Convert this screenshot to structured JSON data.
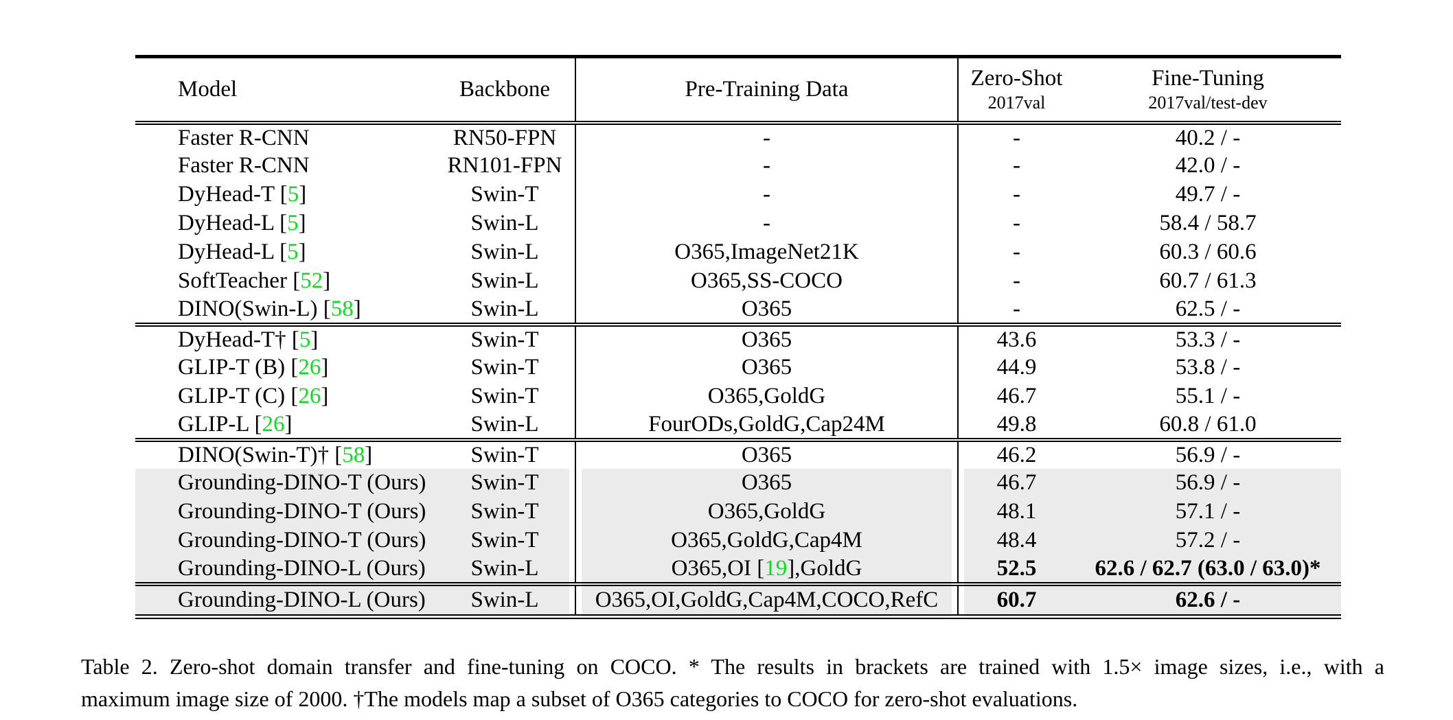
{
  "colors": {
    "citation_green": "#0ddd22",
    "row_gray": "#ebebeb",
    "text": "#000000",
    "background": "#ffffff"
  },
  "table": {
    "header": {
      "model": "Model",
      "backbone": "Backbone",
      "pretrain": "Pre-Training Data",
      "zero_shot_title": "Zero-Shot",
      "zero_shot_sub": "2017val",
      "fine_tuning_title": "Fine-Tuning",
      "fine_tuning_sub": "2017val/test-dev"
    },
    "sections": [
      {
        "rows": [
          {
            "model": "Faster R-CNN",
            "cite": null,
            "backbone": "RN50-FPN",
            "pretrain": "-",
            "pretrain_cite": null,
            "pretrain_suffix": "",
            "zs": "-",
            "ft": "40.2 / -",
            "bold": false,
            "gray": false
          },
          {
            "model": "Faster R-CNN",
            "cite": null,
            "backbone": "RN101-FPN",
            "pretrain": "-",
            "pretrain_cite": null,
            "pretrain_suffix": "",
            "zs": "-",
            "ft": "42.0 / -",
            "bold": false,
            "gray": false
          },
          {
            "model": "DyHead-T ",
            "cite": "5",
            "backbone": "Swin-T",
            "pretrain": "-",
            "pretrain_cite": null,
            "pretrain_suffix": "",
            "zs": "-",
            "ft": "49.7 / -",
            "bold": false,
            "gray": false
          },
          {
            "model": "DyHead-L ",
            "cite": "5",
            "backbone": "Swin-L",
            "pretrain": "-",
            "pretrain_cite": null,
            "pretrain_suffix": "",
            "zs": "-",
            "ft": "58.4 / 58.7",
            "bold": false,
            "gray": false
          },
          {
            "model": "DyHead-L ",
            "cite": "5",
            "backbone": "Swin-L",
            "pretrain": "O365,ImageNet21K",
            "pretrain_cite": null,
            "pretrain_suffix": "",
            "zs": "-",
            "ft": "60.3 / 60.6",
            "bold": false,
            "gray": false
          },
          {
            "model": "SoftTeacher ",
            "cite": "52",
            "backbone": "Swin-L",
            "pretrain": "O365,SS-COCO",
            "pretrain_cite": null,
            "pretrain_suffix": "",
            "zs": "-",
            "ft": "60.7 / 61.3",
            "bold": false,
            "gray": false
          },
          {
            "model": "DINO(Swin-L) ",
            "cite": "58",
            "backbone": "Swin-L",
            "pretrain": "O365",
            "pretrain_cite": null,
            "pretrain_suffix": "",
            "zs": "-",
            "ft": "62.5 / -",
            "bold": false,
            "gray": false
          }
        ]
      },
      {
        "rows": [
          {
            "model": "DyHead-T† ",
            "cite": "5",
            "backbone": "Swin-T",
            "pretrain": "O365",
            "pretrain_cite": null,
            "pretrain_suffix": "",
            "zs": "43.6",
            "ft": "53.3 / -",
            "bold": false,
            "gray": false
          },
          {
            "model": "GLIP-T (B) ",
            "cite": "26",
            "backbone": "Swin-T",
            "pretrain": "O365",
            "pretrain_cite": null,
            "pretrain_suffix": "",
            "zs": "44.9",
            "ft": "53.8 / -",
            "bold": false,
            "gray": false
          },
          {
            "model": "GLIP-T (C) ",
            "cite": "26",
            "backbone": "Swin-T",
            "pretrain": "O365,GoldG",
            "pretrain_cite": null,
            "pretrain_suffix": "",
            "zs": "46.7",
            "ft": "55.1 / -",
            "bold": false,
            "gray": false
          },
          {
            "model": "GLIP-L ",
            "cite": "26",
            "backbone": "Swin-L",
            "pretrain": "FourODs,GoldG,Cap24M",
            "pretrain_cite": null,
            "pretrain_suffix": "",
            "zs": "49.8",
            "ft": "60.8 / 61.0",
            "bold": false,
            "gray": false
          }
        ]
      },
      {
        "rows": [
          {
            "model": "DINO(Swin-T)† ",
            "cite": "58",
            "backbone": "Swin-T",
            "pretrain": "O365",
            "pretrain_cite": null,
            "pretrain_suffix": "",
            "zs": "46.2",
            "ft": "56.9 / -",
            "bold": false,
            "gray": false
          },
          {
            "model": "Grounding-DINO-T (Ours)",
            "cite": null,
            "backbone": "Swin-T",
            "pretrain": "O365",
            "pretrain_cite": null,
            "pretrain_suffix": "",
            "zs": "46.7",
            "ft": "56.9 / -",
            "bold": false,
            "gray": true
          },
          {
            "model": "Grounding-DINO-T (Ours)",
            "cite": null,
            "backbone": "Swin-T",
            "pretrain": "O365,GoldG",
            "pretrain_cite": null,
            "pretrain_suffix": "",
            "zs": "48.1",
            "ft": "57.1 / -",
            "bold": false,
            "gray": true
          },
          {
            "model": "Grounding-DINO-T (Ours)",
            "cite": null,
            "backbone": "Swin-T",
            "pretrain": "O365,GoldG,Cap4M",
            "pretrain_cite": null,
            "pretrain_suffix": "",
            "zs": "48.4",
            "ft": "57.2 / -",
            "bold": false,
            "gray": true
          },
          {
            "model": "Grounding-DINO-L (Ours)",
            "cite": null,
            "backbone": "Swin-L",
            "pretrain": "O365,OI ",
            "pretrain_cite": "19",
            "pretrain_suffix": ",GoldG",
            "zs": "52.5",
            "ft": "62.6 / 62.7 (63.0 / 63.0)*",
            "bold": true,
            "gray": true
          }
        ]
      },
      {
        "rows": [
          {
            "model": "Grounding-DINO-L (Ours)",
            "cite": null,
            "backbone": "Swin-L",
            "pretrain": "O365,OI,GoldG,Cap4M,COCO,RefC",
            "pretrain_cite": null,
            "pretrain_suffix": "",
            "zs": "60.7",
            "ft": "62.6 / -",
            "bold": true,
            "gray": true
          }
        ]
      }
    ]
  },
  "caption": {
    "line1": "Table 2.  Zero-shot domain transfer and fine-tuning on COCO. * The results in brackets are trained with 1.5× image sizes, i.e., with a",
    "line2": "maximum image size of 2000. †The models map a subset of O365 categories to COCO for zero-shot evaluations."
  }
}
